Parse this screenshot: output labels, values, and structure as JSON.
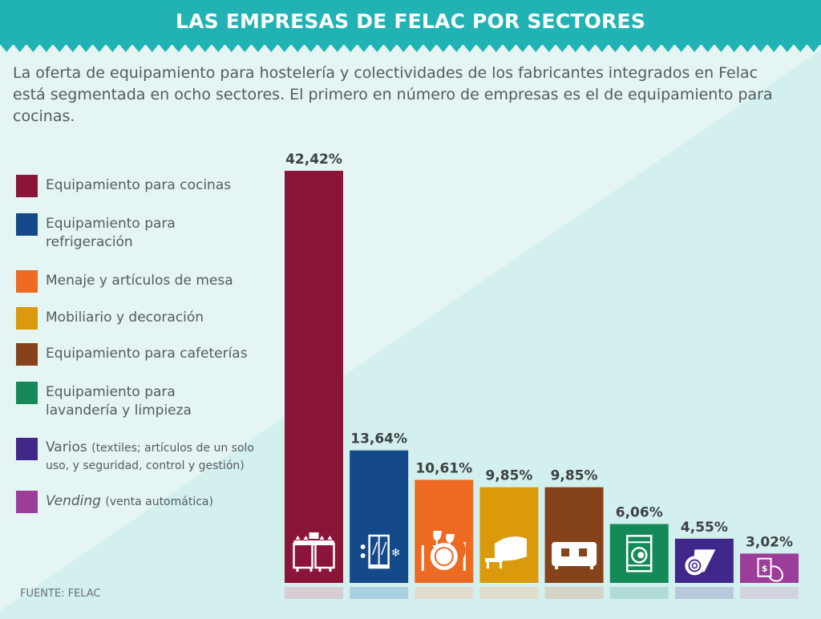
{
  "header": {
    "title": "LAS EMPRESAS DE FELAC POR SECTORES"
  },
  "intro": "La oferta de equipamiento para hostelería y colectividades de los fabricantes integrados en Felac está segmentada en ocho sectores. El primero en número de empresas es el de equipamiento para cocinas.",
  "legend": [
    {
      "label": "Equipamiento para cocinas",
      "note": "",
      "italic": false
    },
    {
      "label": "Equipamiento para refrigeración",
      "note": "",
      "italic": false
    },
    {
      "label": "Menaje y artículos de mesa",
      "note": "",
      "italic": false
    },
    {
      "label": "Mobiliario y decoración",
      "note": "",
      "italic": false
    },
    {
      "label": "Equipamiento para cafeterías",
      "note": "",
      "italic": false
    },
    {
      "label": "Equipamiento para lavandería y limpieza",
      "note": "",
      "italic": false
    },
    {
      "label": "Varios",
      "note": "(textiles; artículos de un solo uso, y seguridad, control y gestión)",
      "italic": false
    },
    {
      "label": "Vending",
      "note": "(venta automática)",
      "italic": true
    }
  ],
  "source": "FUENTE: FELAC",
  "colors": {
    "header": "#21b3b4",
    "background_light": "#e3f5f4",
    "background_dark": "#d3f0ef"
  },
  "chart_data": {
    "type": "bar",
    "title": "LAS EMPRESAS DE FELAC POR SECTORES",
    "xlabel": "",
    "ylabel": "",
    "ylim": [
      0,
      42.42
    ],
    "grid": false,
    "legend_position": "left",
    "categories": [
      "Equipamiento para cocinas",
      "Equipamiento para refrigeración",
      "Menaje y artículos de mesa",
      "Mobiliario y decoración",
      "Equipamiento para cafeterías",
      "Equipamiento para lavandería y limpieza",
      "Varios",
      "Vending"
    ],
    "values": [
      42.42,
      13.64,
      10.61,
      9.85,
      9.85,
      6.06,
      4.55,
      3.02
    ],
    "labels": [
      "42,42%",
      "13,64%",
      "10,61%",
      "9,85%",
      "9,85%",
      "6,06%",
      "4,55%",
      "3,02%"
    ],
    "colors": [
      "#8b1538",
      "#144a8a",
      "#ec6a22",
      "#da9a0b",
      "#86421a",
      "#158a58",
      "#40288a",
      "#9c3d99"
    ],
    "shadow_colors": [
      "#d8cdd3",
      "#a8d0de",
      "#e2dccd",
      "#e0ddcd",
      "#d6d3c8",
      "#b0dcd5",
      "#b9c9dc",
      "#d3d3e0"
    ],
    "icons": [
      "stove-icon",
      "refrigerator-icon",
      "tableware-icon",
      "sofa-icon",
      "coffee-machine-icon",
      "washing-machine-icon",
      "textile-roll-icon",
      "vending-payment-icon"
    ]
  }
}
